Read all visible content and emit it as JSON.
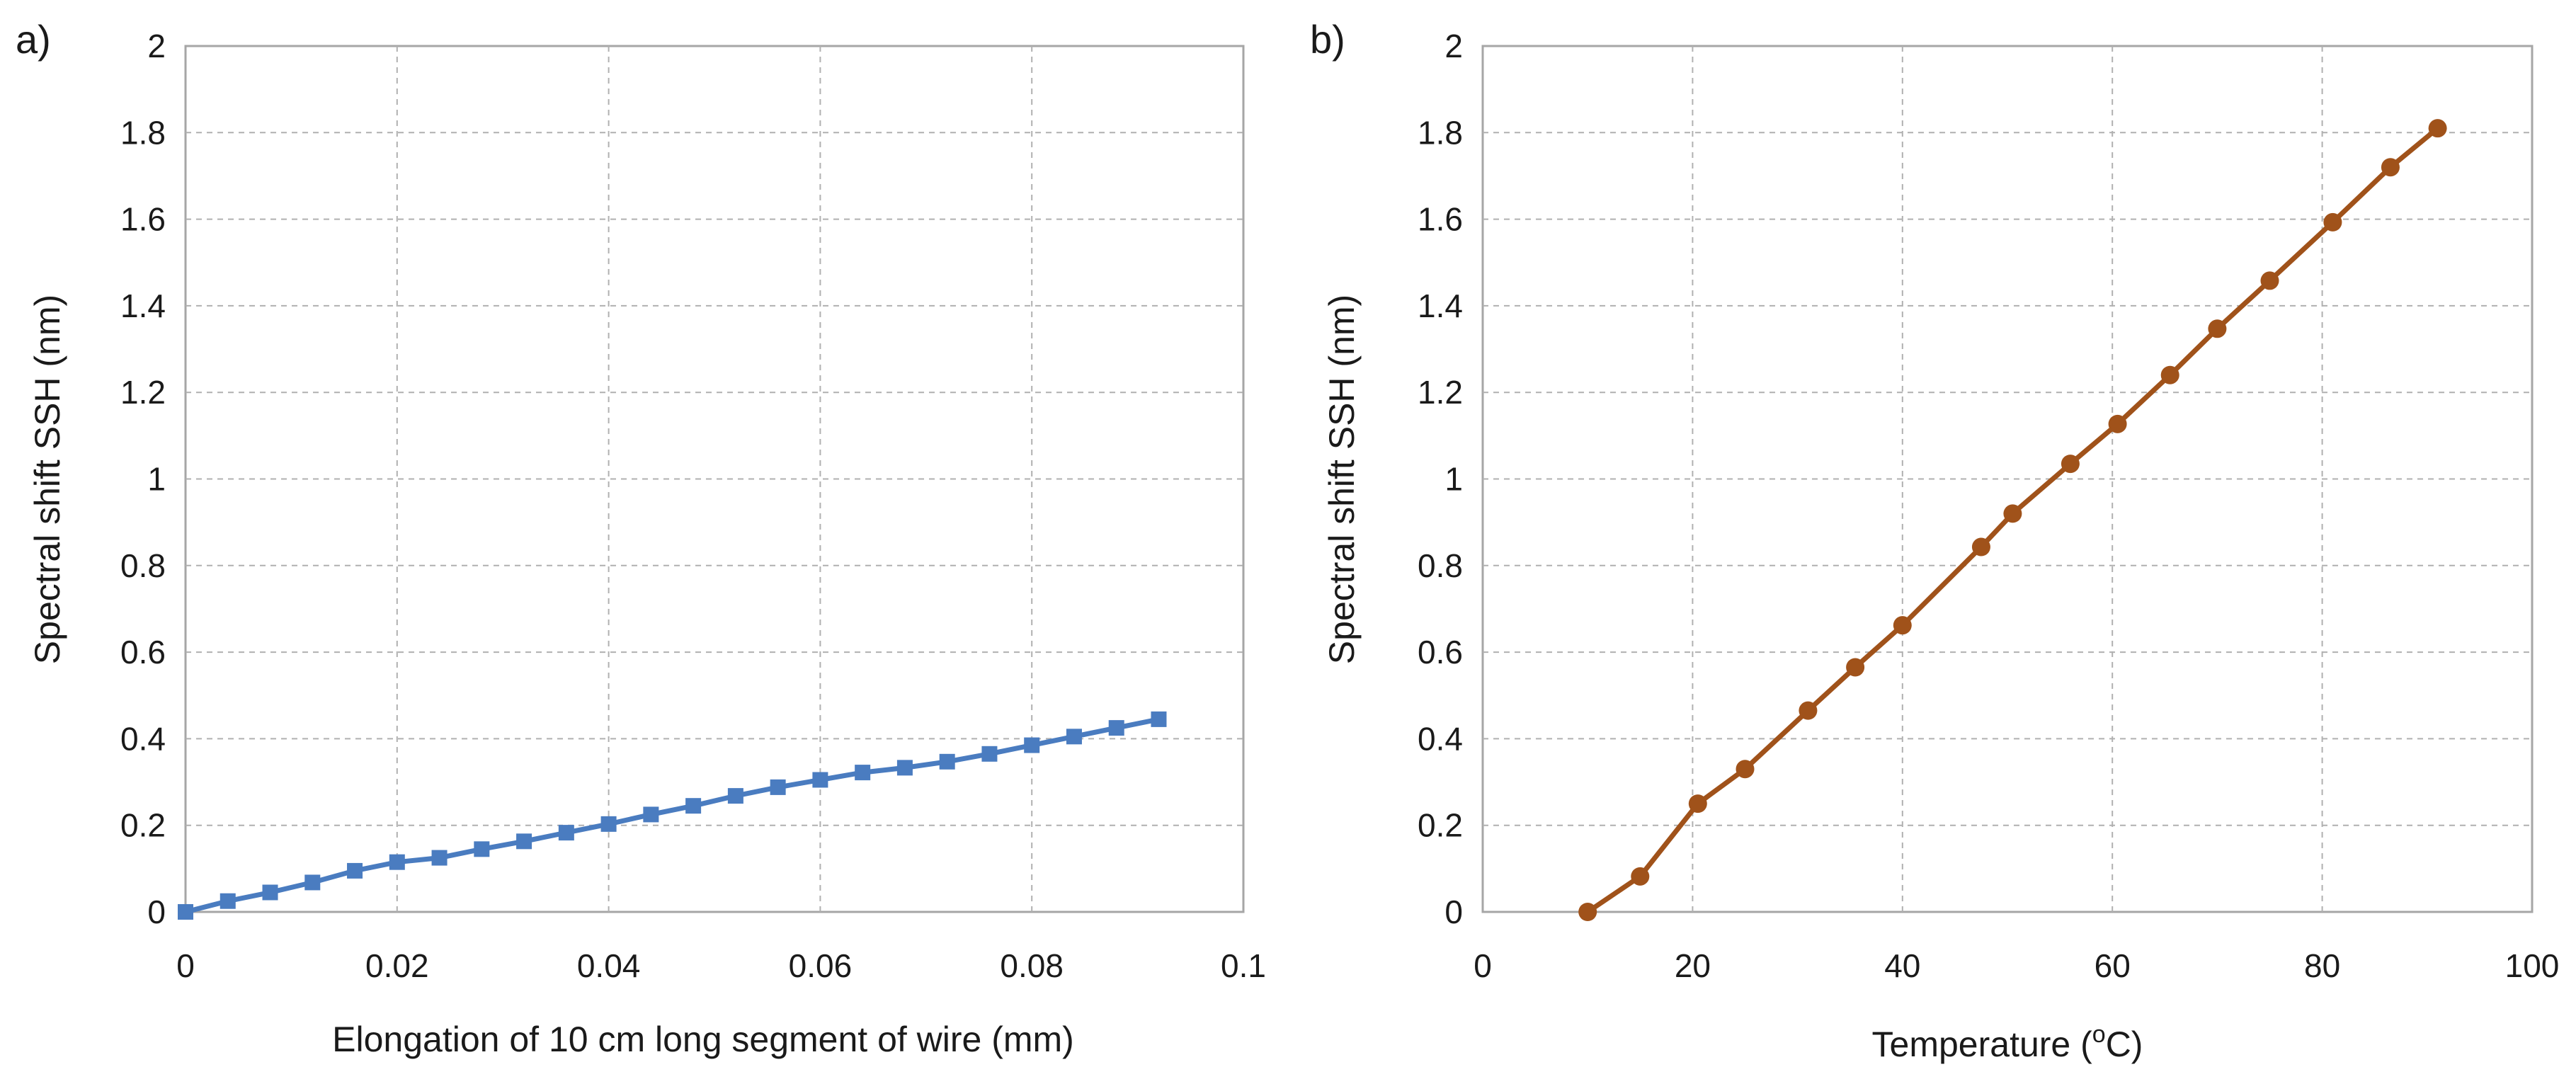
{
  "chart_data": [
    {
      "type": "line",
      "panel_label": "a)",
      "title": "",
      "xlabel": "Elongation of 10 cm long segment of wire (mm)",
      "ylabel": "Spectral shift SSH (nm)",
      "xlim": [
        0,
        0.1
      ],
      "ylim": [
        0,
        2
      ],
      "x_ticks": [
        "0",
        "0.02",
        "0.04",
        "0.06",
        "0.08",
        "0.1"
      ],
      "y_ticks": [
        "0",
        "0.2",
        "0.4",
        "0.6",
        "0.8",
        "1",
        "1.2",
        "1.4",
        "1.6",
        "1.8",
        "2"
      ],
      "grid": true,
      "marker": "square",
      "color": "#4a7cc0",
      "series": [
        {
          "name": "Spectral shift",
          "x": [
            0,
            0.004,
            0.008,
            0.012,
            0.016,
            0.02,
            0.024,
            0.028,
            0.032,
            0.036,
            0.04,
            0.044,
            0.048,
            0.052,
            0.056,
            0.06,
            0.064,
            0.068,
            0.072,
            0.076,
            0.08,
            0.084,
            0.088,
            0.092
          ],
          "y": [
            0.0,
            0.025,
            0.045,
            0.068,
            0.095,
            0.115,
            0.125,
            0.145,
            0.163,
            0.183,
            0.203,
            0.225,
            0.245,
            0.268,
            0.288,
            0.305,
            0.322,
            0.333,
            0.347,
            0.365,
            0.385,
            0.405,
            0.425,
            0.445
          ]
        }
      ]
    },
    {
      "type": "line",
      "panel_label": "b)",
      "title": "",
      "xlabel": "Temperature (",
      "xlabel_superscript": "o",
      "xlabel_suffix": "C)",
      "ylabel": "Spectral shift SSH (nm)",
      "xlim": [
        0,
        100
      ],
      "ylim": [
        0,
        2
      ],
      "x_ticks": [
        "0",
        "20",
        "40",
        "60",
        "80",
        "100"
      ],
      "y_ticks": [
        "0",
        "0.2",
        "0.4",
        "0.6",
        "0.8",
        "1",
        "1.2",
        "1.4",
        "1.6",
        "1.8",
        "2"
      ],
      "grid": true,
      "marker": "circle",
      "color": "#a0521a",
      "series": [
        {
          "name": "Spectral shift",
          "x": [
            10,
            15,
            20.5,
            25,
            31,
            35.5,
            40,
            47.5,
            50.5,
            56,
            60.5,
            65.5,
            70,
            75,
            81,
            86.5,
            91
          ],
          "y": [
            0.0,
            0.082,
            0.25,
            0.33,
            0.465,
            0.565,
            0.662,
            0.843,
            0.92,
            1.035,
            1.127,
            1.24,
            1.347,
            1.458,
            1.593,
            1.72,
            1.81
          ]
        }
      ]
    }
  ]
}
